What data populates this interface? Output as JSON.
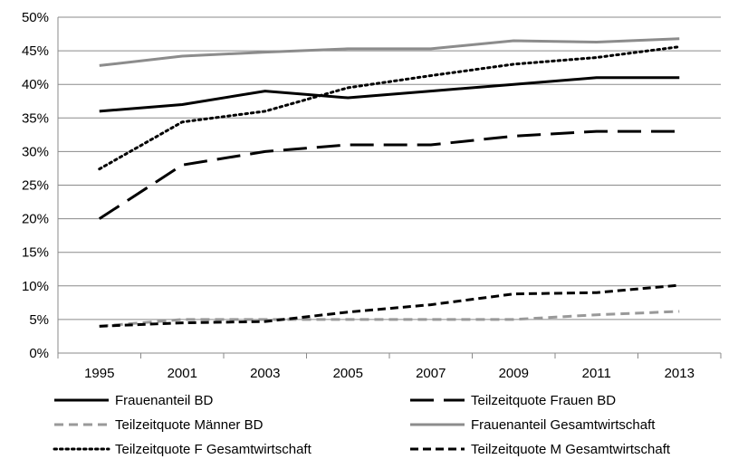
{
  "chart_data": {
    "type": "line",
    "title": "",
    "xlabel": "",
    "ylabel": "",
    "categories": [
      "1995",
      "2001",
      "2003",
      "2005",
      "2007",
      "2009",
      "2011",
      "2013"
    ],
    "ylim": [
      0,
      50
    ],
    "yticks": [
      0,
      5,
      10,
      15,
      20,
      25,
      30,
      35,
      40,
      45,
      50
    ],
    "ytick_labels": [
      "0%",
      "5%",
      "10%",
      "15%",
      "20%",
      "25%",
      "30%",
      "35%",
      "40%",
      "45%",
      "50%"
    ],
    "grid": "horizontal",
    "legend_position": "bottom",
    "series": [
      {
        "name": "Frauenanteil BD",
        "values": [
          36,
          37,
          39,
          38,
          39,
          40,
          41,
          41
        ],
        "color": "#000000",
        "style": "solid",
        "width": 3
      },
      {
        "name": "Teilzeitquote Frauen BD",
        "values": [
          20,
          28,
          30,
          31,
          31,
          32.3,
          33,
          33
        ],
        "color": "#000000",
        "style": "longdash",
        "width": 3
      },
      {
        "name": "Teilzeitquote Männer BD",
        "values": [
          4,
          5,
          5,
          5,
          5,
          5,
          5.7,
          6.2
        ],
        "color": "#999999",
        "style": "dash",
        "width": 3
      },
      {
        "name": "Frauenanteil Gesamtwirtschaft",
        "values": [
          42.8,
          44.2,
          44.8,
          45.3,
          45.3,
          46.5,
          46.3,
          46.8
        ],
        "color": "#8c8c8c",
        "style": "solid",
        "width": 3
      },
      {
        "name": "Teilzeitquote F Gesamtwirtschaft",
        "values": [
          27.4,
          34.4,
          36,
          39.5,
          41.3,
          43,
          44,
          45.6
        ],
        "color": "#000000",
        "style": "dot",
        "width": 3
      },
      {
        "name": "Teilzeitquote M Gesamtwirtschaft",
        "values": [
          4,
          4.5,
          4.7,
          6.1,
          7.2,
          8.8,
          9,
          10.1
        ],
        "color": "#000000",
        "style": "shortdash",
        "width": 3
      }
    ]
  }
}
